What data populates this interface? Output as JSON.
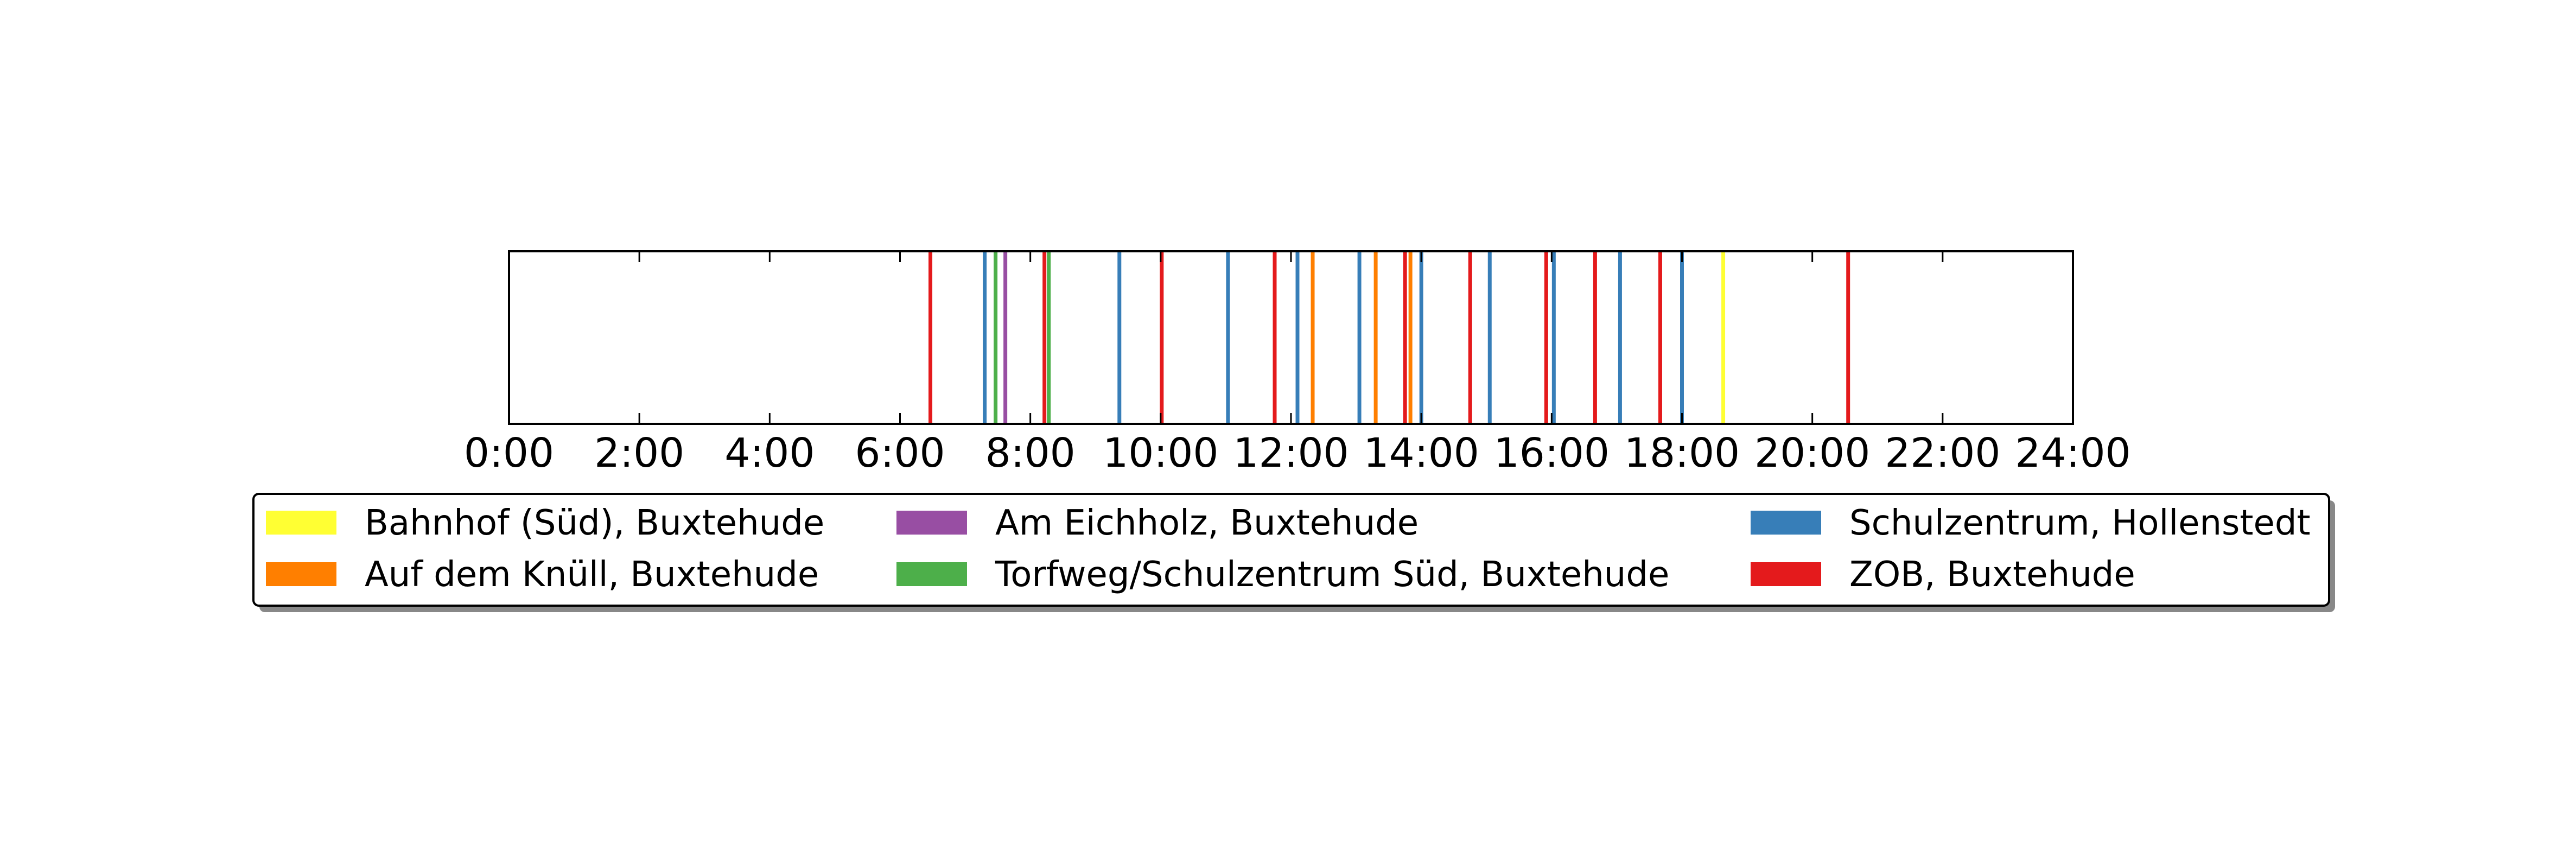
{
  "chart_data": {
    "type": "event-timeline",
    "title": "",
    "xlabel": "",
    "ylabel": "",
    "x_unit": "time of day",
    "xlim": [
      "0:00",
      "24:00"
    ],
    "x_ticks": [
      "0:00",
      "2:00",
      "4:00",
      "6:00",
      "8:00",
      "10:00",
      "12:00",
      "14:00",
      "16:00",
      "18:00",
      "20:00",
      "22:00",
      "24:00"
    ],
    "grid": false,
    "legend_position": "bottom-center",
    "series": [
      {
        "name": "Bahnhof (Süd), Buxtehude",
        "color": "#ffff33",
        "times": [
          "18:38"
        ]
      },
      {
        "name": "Auf dem Knüll, Buxtehude",
        "color": "#ff7f00",
        "times": [
          "12:20",
          "13:18",
          "13:50"
        ]
      },
      {
        "name": "Am Eichholz, Buxtehude",
        "color": "#984ea3",
        "times": [
          "7:37"
        ]
      },
      {
        "name": "Torfweg/Schulzentrum Süd, Buxtehude",
        "color": "#4daf4a",
        "times": [
          "7:28",
          "8:17"
        ]
      },
      {
        "name": "Schulzentrum, Hollenstedt",
        "color": "#377eb8",
        "times": [
          "7:18",
          "9:22",
          "11:02",
          "12:06",
          "13:03",
          "14:00",
          "15:03",
          "16:02",
          "17:03",
          "18:00"
        ]
      },
      {
        "name": "ZOB, Buxtehude",
        "color": "#e41a1c",
        "times": [
          "6:28",
          "8:13",
          "10:01",
          "11:45",
          "13:45",
          "14:45",
          "15:55",
          "16:40",
          "17:40",
          "20:33"
        ]
      }
    ]
  }
}
